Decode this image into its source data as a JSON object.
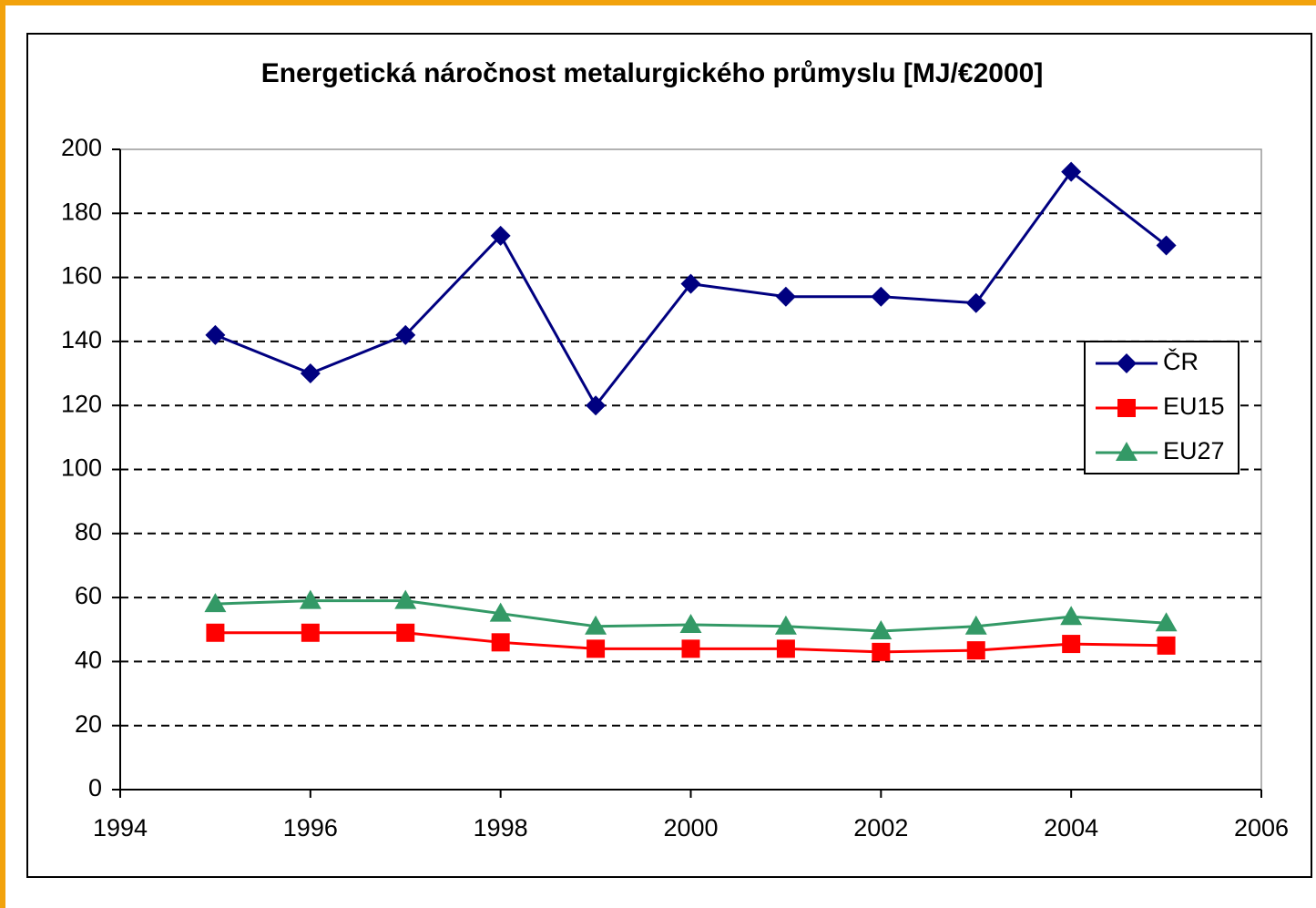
{
  "chart_data": {
    "type": "line",
    "title": "Energetická náročnost metalurgického průmyslu [MJ/€2000]",
    "x": [
      1995,
      1996,
      1997,
      1998,
      1999,
      2000,
      2001,
      2002,
      2003,
      2004,
      2005
    ],
    "series": [
      {
        "name": "ČR",
        "color": "#000080",
        "marker": "diamond",
        "values": [
          142,
          130,
          142,
          173,
          120,
          158,
          154,
          154,
          152,
          193,
          170
        ]
      },
      {
        "name": "EU15",
        "color": "#ff0000",
        "marker": "square",
        "values": [
          49,
          49,
          49,
          46,
          44,
          44,
          44,
          43,
          43.5,
          45.5,
          45
        ]
      },
      {
        "name": "EU27",
        "color": "#339966",
        "marker": "triangle",
        "values": [
          58,
          59,
          59,
          55,
          51,
          51.5,
          51,
          49.5,
          51,
          54,
          52
        ]
      }
    ],
    "xlim": [
      1994,
      2006
    ],
    "xticks": [
      1994,
      1996,
      1998,
      2000,
      2002,
      2004,
      2006
    ],
    "ylim": [
      0,
      200
    ],
    "yticks": [
      0,
      20,
      40,
      60,
      80,
      100,
      120,
      140,
      160,
      180,
      200
    ],
    "grid": true,
    "legend": "right"
  }
}
